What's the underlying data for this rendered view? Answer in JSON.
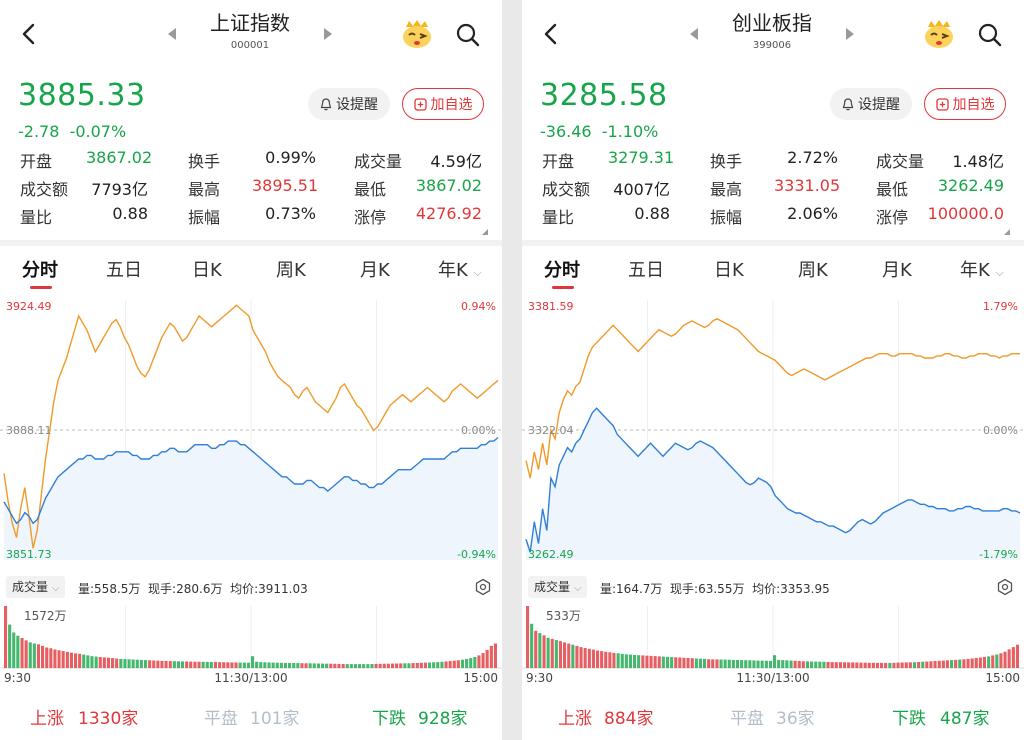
{
  "colors": {
    "up": "#e0373b",
    "down": "#17a54a",
    "price_line": "#f09a2a",
    "avg_line": "#2f7fd6",
    "flat": "#b4bec9"
  },
  "tabs": [
    "分时",
    "五日",
    "日K",
    "周K",
    "月K",
    "年K"
  ],
  "stat_labels": [
    "开盘",
    "换手",
    "成交量",
    "成交额",
    "最高",
    "最低",
    "量比",
    "振幅",
    "涨停"
  ],
  "alert_label": "设提醒",
  "watch_label": "加自选",
  "vol_selector": "成交量",
  "time_labels": [
    "9:30",
    "11:30/13:00",
    "15:00"
  ],
  "market_labels": {
    "up": "上涨",
    "flat": "平盘",
    "down": "下跌"
  },
  "panels": [
    {
      "title": "上证指数",
      "code": "000001",
      "price": "3885.33",
      "change": "-2.78",
      "change_pct": "-0.07%",
      "stats": {
        "open": "3867.02",
        "turnover": "0.99%",
        "volume": "4.59亿",
        "amount": "7793亿",
        "high": "3895.51",
        "low": "3867.02",
        "volume_ratio": "0.88",
        "amplitude": "0.73%",
        "limit_up": "4276.92"
      },
      "chart_data": {
        "type": "line",
        "ylim": [
          3851.73,
          3924.49
        ],
        "prev_close": 3888.11,
        "top_label": "3924.49",
        "top_pct": "0.94%",
        "mid_label": "3888.11",
        "mid_pct": "0.00%",
        "bottom_label": "3851.73",
        "bottom_pct": "-0.94%",
        "series": [
          {
            "values": [
              3876,
              3868,
              3862,
              3858,
              3866,
              3872,
              3864,
              3855,
              3860,
              3870,
              3880,
              3888,
              3896,
              3902,
              3905,
              3908,
              3912,
              3916,
              3920,
              3918,
              3916,
              3913,
              3910,
              3912,
              3914,
              3916,
              3918,
              3919,
              3917,
              3914,
              3912,
              3909,
              3906,
              3904,
              3903,
              3905,
              3908,
              3911,
              3914,
              3916,
              3918,
              3917,
              3915,
              3913,
              3914,
              3916,
              3918,
              3920,
              3919,
              3918,
              3917,
              3918,
              3919,
              3920,
              3921,
              3922,
              3923,
              3922,
              3921,
              3920,
              3916,
              3914,
              3912,
              3910,
              3907,
              3905,
              3903,
              3902,
              3901,
              3900,
              3898,
              3897,
              3899,
              3900,
              3898,
              3896,
              3895,
              3894,
              3893,
              3895,
              3897,
              3900,
              3901,
              3899,
              3897,
              3895,
              3894,
              3892,
              3890,
              3888,
              3889,
              3891,
              3893,
              3895,
              3896,
              3897,
              3898,
              3897,
              3896,
              3897,
              3898,
              3899,
              3900,
              3899,
              3898,
              3897,
              3896,
              3897,
              3899,
              3900,
              3901,
              3900,
              3899,
              3898,
              3897,
              3898,
              3899,
              3900,
              3901,
              3902
            ]
          },
          {
            "values": [
              3868,
              3866,
              3864,
              3862,
              3863,
              3865,
              3864,
              3862,
              3863,
              3866,
              3869,
              3871,
              3873,
              3875,
              3876,
              3877,
              3878,
              3879,
              3880,
              3880,
              3881,
              3881,
              3880,
              3880,
              3880,
              3881,
              3881,
              3882,
              3882,
              3882,
              3882,
              3881,
              3881,
              3880,
              3880,
              3880,
              3881,
              3881,
              3882,
              3882,
              3883,
              3883,
              3882,
              3882,
              3882,
              3883,
              3884,
              3884,
              3884,
              3884,
              3883,
              3883,
              3884,
              3884,
              3885,
              3885,
              3885,
              3884,
              3884,
              3883,
              3882,
              3881,
              3880,
              3879,
              3878,
              3877,
              3876,
              3875,
              3875,
              3874,
              3873,
              3873,
              3873,
              3874,
              3874,
              3873,
              3872,
              3872,
              3871,
              3872,
              3873,
              3874,
              3875,
              3875,
              3874,
              3874,
              3873,
              3873,
              3872,
              3872,
              3873,
              3873,
              3874,
              3875,
              3876,
              3877,
              3877,
              3877,
              3877,
              3878,
              3879,
              3880,
              3880,
              3880,
              3880,
              3880,
              3880,
              3881,
              3882,
              3882,
              3883,
              3883,
              3883,
              3883,
              3883,
              3884,
              3884,
              3885,
              3885,
              3886
            ]
          }
        ]
      },
      "volume_info": {
        "vol": "558.5万",
        "current": "280.6万",
        "avg_price": "3911.03"
      },
      "volume_chart": {
        "type": "bar",
        "max_label": "1572万",
        "max": 1572,
        "values": [
          1572,
          1100,
          900,
          820,
          760,
          700,
          650,
          620,
          600,
          560,
          520,
          500,
          470,
          450,
          430,
          410,
          390,
          370,
          360,
          340,
          320,
          300,
          290,
          280,
          270,
          260,
          250,
          240,
          230,
          225,
          220,
          215,
          210,
          205,
          200,
          195,
          190,
          185,
          180,
          178,
          175,
          172,
          170,
          168,
          165,
          162,
          160,
          158,
          156,
          154,
          152,
          150,
          148,
          146,
          144,
          142,
          140,
          138,
          136,
          134,
          300,
          160,
          150,
          145,
          140,
          138,
          135,
          132,
          130,
          128,
          126,
          124,
          122,
          120,
          118,
          116,
          114,
          112,
          110,
          108,
          106,
          104,
          102,
          100,
          100,
          100,
          100,
          100,
          100,
          102,
          104,
          106,
          108,
          110,
          112,
          114,
          116,
          118,
          120,
          124,
          128,
          132,
          136,
          140,
          145,
          150,
          158,
          166,
          175,
          185,
          195,
          210,
          230,
          250,
          280,
          320,
          380,
          460,
          560,
          620
        ]
      },
      "market": {
        "up": "1330家",
        "flat": "101家",
        "down": "928家"
      }
    },
    {
      "title": "创业板指",
      "code": "399006",
      "price": "3285.58",
      "change": "-36.46",
      "change_pct": "-1.10%",
      "stats": {
        "open": "3279.31",
        "turnover": "2.72%",
        "volume": "1.48亿",
        "amount": "4007亿",
        "high": "3331.05",
        "low": "3262.49",
        "volume_ratio": "0.88",
        "amplitude": "2.06%",
        "limit_up": "100000.0"
      },
      "chart_data": {
        "type": "line",
        "ylim": [
          3262.49,
          3381.59
        ],
        "prev_close": 3322.04,
        "top_label": "3381.59",
        "top_pct": "1.79%",
        "mid_label": "3322.04",
        "mid_pct": "0.00%",
        "bottom_label": "3262.49",
        "bottom_pct": "-1.79%",
        "series": [
          {
            "values": [
              3308,
              3300,
              3312,
              3304,
              3316,
              3306,
              3322,
              3318,
              3330,
              3336,
              3340,
              3338,
              3342,
              3344,
              3350,
              3356,
              3360,
              3362,
              3364,
              3366,
              3368,
              3370,
              3368,
              3366,
              3364,
              3362,
              3360,
              3358,
              3360,
              3362,
              3364,
              3366,
              3368,
              3367,
              3366,
              3365,
              3366,
              3368,
              3370,
              3371,
              3372,
              3371,
              3370,
              3369,
              3370,
              3372,
              3373,
              3372,
              3371,
              3370,
              3369,
              3368,
              3366,
              3364,
              3362,
              3360,
              3358,
              3357,
              3356,
              3355,
              3354,
              3352,
              3350,
              3348,
              3347,
              3348,
              3349,
              3350,
              3349,
              3348,
              3347,
              3346,
              3345,
              3346,
              3347,
              3348,
              3349,
              3350,
              3351,
              3352,
              3353,
              3354,
              3355,
              3355,
              3356,
              3357,
              3357,
              3357,
              3356,
              3356,
              3357,
              3357,
              3357,
              3357,
              3356,
              3356,
              3355,
              3355,
              3355,
              3356,
              3356,
              3357,
              3357,
              3356,
              3356,
              3355,
              3355,
              3356,
              3356,
              3357,
              3357,
              3357,
              3356,
              3356,
              3355,
              3356,
              3356,
              3357,
              3357,
              3357
            ]
          },
          {
            "values": [
              3272,
              3266,
              3280,
              3270,
              3286,
              3276,
              3300,
              3296,
              3306,
              3310,
              3314,
              3312,
              3316,
              3318,
              3322,
              3326,
              3330,
              3332,
              3330,
              3328,
              3326,
              3324,
              3320,
              3318,
              3316,
              3314,
              3312,
              3310,
              3312,
              3314,
              3316,
              3314,
              3312,
              3310,
              3312,
              3314,
              3316,
              3315,
              3314,
              3313,
              3314,
              3316,
              3317,
              3316,
              3315,
              3314,
              3312,
              3310,
              3308,
              3306,
              3304,
              3302,
              3300,
              3298,
              3297,
              3298,
              3300,
              3299,
              3298,
              3296,
              3292,
              3290,
              3288,
              3286,
              3285,
              3284,
              3284,
              3283,
              3282,
              3281,
              3280,
              3280,
              3279,
              3278,
              3278,
              3277,
              3276,
              3275,
              3276,
              3278,
              3280,
              3281,
              3280,
              3279,
              3280,
              3282,
              3284,
              3285,
              3286,
              3287,
              3288,
              3289,
              3290,
              3290,
              3289,
              3288,
              3288,
              3287,
              3287,
              3286,
              3286,
              3286,
              3285,
              3285,
              3286,
              3286,
              3287,
              3287,
              3286,
              3286,
              3285,
              3285,
              3285,
              3285,
              3285,
              3286,
              3286,
              3285,
              3285,
              3284
            ]
          }
        ]
      },
      "volume_info": {
        "vol": "164.7万",
        "current": "63.55万",
        "avg_price": "3353.95"
      },
      "volume_chart": {
        "type": "bar",
        "max_label": "533万",
        "max": 533,
        "values": [
          533,
          380,
          320,
          300,
          280,
          260,
          250,
          240,
          230,
          220,
          210,
          200,
          190,
          180,
          172,
          165,
          158,
          150,
          145,
          140,
          135,
          130,
          126,
          122,
          118,
          115,
          112,
          110,
          108,
          106,
          104,
          102,
          100,
          98,
          96,
          94,
          92,
          90,
          88,
          86,
          84,
          82,
          80,
          78,
          76,
          75,
          74,
          73,
          72,
          71,
          70,
          69,
          68,
          67,
          66,
          65,
          64,
          63,
          62,
          61,
          110,
          70,
          68,
          66,
          64,
          62,
          60,
          58,
          57,
          56,
          55,
          54,
          53,
          52,
          51,
          50,
          50,
          49,
          48,
          48,
          47,
          46,
          46,
          45,
          45,
          44,
          44,
          44,
          44,
          45,
          46,
          47,
          48,
          49,
          50,
          52,
          54,
          56,
          58,
          60,
          62,
          64,
          66,
          68,
          70,
          72,
          75,
          78,
          82,
          86,
          90,
          95,
          100,
          108,
          116,
          126,
          140,
          160,
          180,
          200
        ]
      },
      "market": {
        "up": "884家",
        "flat": "36家",
        "down": "487家"
      }
    }
  ]
}
